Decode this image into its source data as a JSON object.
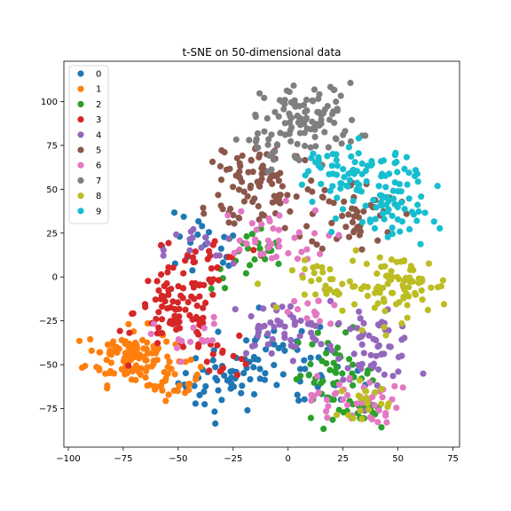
{
  "chart_data": {
    "type": "scatter",
    "title": "t-SNE on 50-dimensional data",
    "xlim": [
      -102,
      78
    ],
    "ylim": [
      -97,
      123
    ],
    "xticks": [
      -100,
      -75,
      -50,
      -25,
      0,
      25,
      50,
      75
    ],
    "yticks": [
      -75,
      -50,
      -25,
      0,
      25,
      50,
      75,
      100
    ],
    "x_tick_labels": [
      "−100",
      "−75",
      "−50",
      "−25",
      "0",
      "25",
      "50",
      "75"
    ],
    "y_tick_labels": [
      "−75",
      "−50",
      "−25",
      "0",
      "25",
      "50",
      "75",
      "100"
    ],
    "grid": false,
    "legend_position": "top-left",
    "series": [
      {
        "name": "0",
        "color": "#1f77b4",
        "clusters": [
          {
            "center": [
              -30,
              -60
            ],
            "spread": [
              10,
              9
            ],
            "count": 45
          },
          {
            "center": [
              -5,
              -45
            ],
            "spread": [
              13,
              11
            ],
            "count": 40
          },
          {
            "center": [
              -40,
              15
            ],
            "spread": [
              10,
              10
            ],
            "count": 20
          },
          {
            "center": [
              20,
              -60
            ],
            "spread": [
              8,
              7
            ],
            "count": 12
          }
        ]
      },
      {
        "name": "1",
        "color": "#ff7f0e",
        "clusters": [
          {
            "center": [
              -72,
              -45
            ],
            "spread": [
              10,
              8
            ],
            "count": 120
          },
          {
            "center": [
              -52,
              -60
            ],
            "spread": [
              6,
              5
            ],
            "count": 25
          }
        ]
      },
      {
        "name": "2",
        "color": "#2ca02c",
        "clusters": [
          {
            "center": [
              20,
              -55
            ],
            "spread": [
              10,
              12
            ],
            "count": 55
          },
          {
            "center": [
              -15,
              10
            ],
            "spread": [
              10,
              9
            ],
            "count": 25
          },
          {
            "center": [
              35,
              -75
            ],
            "spread": [
              5,
              5
            ],
            "count": 15
          }
        ]
      },
      {
        "name": "3",
        "color": "#d62728",
        "clusters": [
          {
            "center": [
              -50,
              -20
            ],
            "spread": [
              10,
              12
            ],
            "count": 90
          },
          {
            "center": [
              -35,
              10
            ],
            "spread": [
              8,
              8
            ],
            "count": 20
          },
          {
            "center": [
              -30,
              -45
            ],
            "spread": [
              7,
              6
            ],
            "count": 15
          }
        ]
      },
      {
        "name": "4",
        "color": "#9467bd",
        "clusters": [
          {
            "center": [
              40,
              -40
            ],
            "spread": [
              9,
              9
            ],
            "count": 55
          },
          {
            "center": [
              -5,
              -30
            ],
            "spread": [
              12,
              8
            ],
            "count": 50
          },
          {
            "center": [
              -40,
              15
            ],
            "spread": [
              8,
              8
            ],
            "count": 15
          }
        ]
      },
      {
        "name": "5",
        "color": "#8c564b",
        "clusters": [
          {
            "center": [
              -10,
              55
            ],
            "spread": [
              12,
              15
            ],
            "count": 70
          },
          {
            "center": [
              30,
              35
            ],
            "spread": [
              10,
              10
            ],
            "count": 50
          },
          {
            "center": [
              -30,
              50
            ],
            "spread": [
              8,
              12
            ],
            "count": 20
          }
        ]
      },
      {
        "name": "6",
        "color": "#e377c2",
        "clusters": [
          {
            "center": [
              -10,
              20
            ],
            "spread": [
              14,
              10
            ],
            "count": 40
          },
          {
            "center": [
              30,
              -70
            ],
            "spread": [
              10,
              7
            ],
            "count": 45
          },
          {
            "center": [
              -45,
              -35
            ],
            "spread": [
              8,
              6
            ],
            "count": 15
          },
          {
            "center": [
              10,
              -20
            ],
            "spread": [
              8,
              6
            ],
            "count": 15
          }
        ]
      },
      {
        "name": "7",
        "color": "#7f7f7f",
        "clusters": [
          {
            "center": [
              10,
              90
            ],
            "spread": [
              11,
              10
            ],
            "count": 100
          },
          {
            "center": [
              -10,
              75
            ],
            "spread": [
              7,
              8
            ],
            "count": 20
          }
        ]
      },
      {
        "name": "8",
        "color": "#bcbd22",
        "clusters": [
          {
            "center": [
              50,
              -5
            ],
            "spread": [
              12,
              9
            ],
            "count": 80
          },
          {
            "center": [
              20,
              -5
            ],
            "spread": [
              9,
              7
            ],
            "count": 30
          },
          {
            "center": [
              35,
              -70
            ],
            "spread": [
              6,
              5
            ],
            "count": 20
          }
        ]
      },
      {
        "name": "9",
        "color": "#17becf",
        "clusters": [
          {
            "center": [
              35,
              55
            ],
            "spread": [
              12,
              10
            ],
            "count": 80
          },
          {
            "center": [
              50,
              35
            ],
            "spread": [
              7,
              10
            ],
            "count": 40
          },
          {
            "center": [
              15,
              65
            ],
            "spread": [
              6,
              5
            ],
            "count": 15
          }
        ]
      }
    ]
  }
}
